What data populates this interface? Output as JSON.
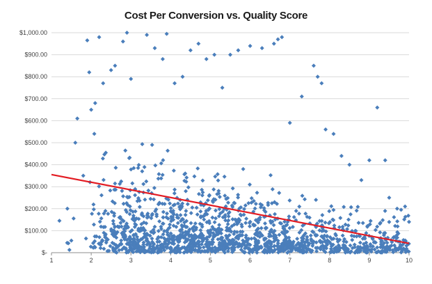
{
  "chart_data": {
    "type": "scatter",
    "title": "Cost Per Conversion vs. Quality Score",
    "xlabel": "",
    "ylabel": "",
    "xlim": [
      1,
      10
    ],
    "ylim": [
      0,
      1000
    ],
    "x_ticks": [
      "1",
      "2",
      "3",
      "4",
      "5",
      "6",
      "7",
      "8",
      "9",
      "10"
    ],
    "y_ticks": [
      "$-",
      "$100.00",
      "$200.00",
      "$300.00",
      "$400.00",
      "$500.00",
      "$600.00",
      "$700.00",
      "$800.00",
      "$900.00",
      "$1,000.00"
    ],
    "y_tick_values": [
      0,
      100,
      200,
      300,
      400,
      500,
      600,
      700,
      800,
      900,
      1000
    ],
    "grid": "horizontal",
    "legend": "none",
    "series": [
      {
        "marker": "diamond",
        "color": "#4a7ebb",
        "sample_points": [
          [
            1.2,
            145
          ],
          [
            1.4,
            200
          ],
          [
            1.5,
            55
          ],
          [
            1.6,
            500
          ],
          [
            1.65,
            610
          ],
          [
            1.8,
            350
          ],
          [
            1.9,
            965
          ],
          [
            1.95,
            820
          ],
          [
            2.0,
            650
          ],
          [
            2.1,
            680
          ],
          [
            2.2,
            980
          ],
          [
            2.3,
            770
          ],
          [
            2.5,
            830
          ],
          [
            2.6,
            850
          ],
          [
            2.8,
            960
          ],
          [
            2.9,
            1000
          ],
          [
            3.0,
            790
          ],
          [
            3.4,
            990
          ],
          [
            3.6,
            930
          ],
          [
            3.8,
            880
          ],
          [
            3.9,
            995
          ],
          [
            4.1,
            770
          ],
          [
            4.3,
            800
          ],
          [
            4.5,
            920
          ],
          [
            4.7,
            950
          ],
          [
            4.9,
            880
          ],
          [
            5.1,
            900
          ],
          [
            5.3,
            750
          ],
          [
            5.5,
            900
          ],
          [
            5.7,
            920
          ],
          [
            6.0,
            940
          ],
          [
            6.3,
            930
          ],
          [
            6.6,
            950
          ],
          [
            6.7,
            970
          ],
          [
            6.8,
            980
          ],
          [
            7.0,
            590
          ],
          [
            7.3,
            710
          ],
          [
            7.6,
            850
          ],
          [
            7.7,
            800
          ],
          [
            7.8,
            770
          ],
          [
            7.9,
            560
          ],
          [
            8.1,
            540
          ],
          [
            8.3,
            440
          ],
          [
            8.5,
            400
          ],
          [
            8.8,
            330
          ],
          [
            9.0,
            420
          ],
          [
            9.2,
            660
          ],
          [
            9.4,
            420
          ],
          [
            9.5,
            250
          ],
          [
            9.7,
            200
          ],
          [
            9.8,
            195
          ],
          [
            9.9,
            210
          ],
          [
            10.0,
            140
          ]
        ]
      },
      {
        "name": "",
        "type": "line",
        "color": "#e31c23",
        "x": [
          1,
          10
        ],
        "values": [
          355,
          42
        ]
      }
    ]
  }
}
